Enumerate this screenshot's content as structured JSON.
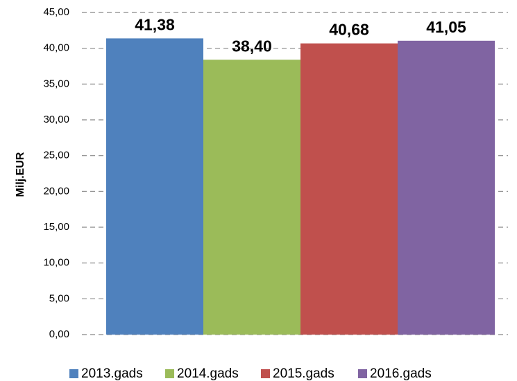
{
  "chart_data": {
    "type": "bar",
    "y_label": "Milj.EUR",
    "series": [
      {
        "name": "2013.gads",
        "color": "#4f81bd",
        "values": [
          41.38
        ],
        "value_labels": [
          "41,38"
        ]
      },
      {
        "name": "2014.gads",
        "color": "#9bbb59",
        "values": [
          38.4
        ],
        "value_labels": [
          "38,40"
        ]
      },
      {
        "name": "2015.gads",
        "color": "#c0504d",
        "values": [
          40.68
        ],
        "value_labels": [
          "40,68"
        ]
      },
      {
        "name": "2016.gads",
        "color": "#8064a2",
        "values": [
          41.05
        ],
        "value_labels": [
          "41,05"
        ]
      }
    ],
    "ylim": [
      0,
      45
    ],
    "yticks": [
      {
        "value": 0,
        "label": "0,00"
      },
      {
        "value": 5,
        "label": "5,00"
      },
      {
        "value": 10,
        "label": "10,00"
      },
      {
        "value": 15,
        "label": "15,00"
      },
      {
        "value": 20,
        "label": "20,00"
      },
      {
        "value": 25,
        "label": "25,00"
      },
      {
        "value": 30,
        "label": "30,00"
      },
      {
        "value": 35,
        "label": "35,00"
      },
      {
        "value": 40,
        "label": "40,00"
      },
      {
        "value": 45,
        "label": "45,00"
      }
    ],
    "grid": true,
    "legend": "bottom"
  }
}
